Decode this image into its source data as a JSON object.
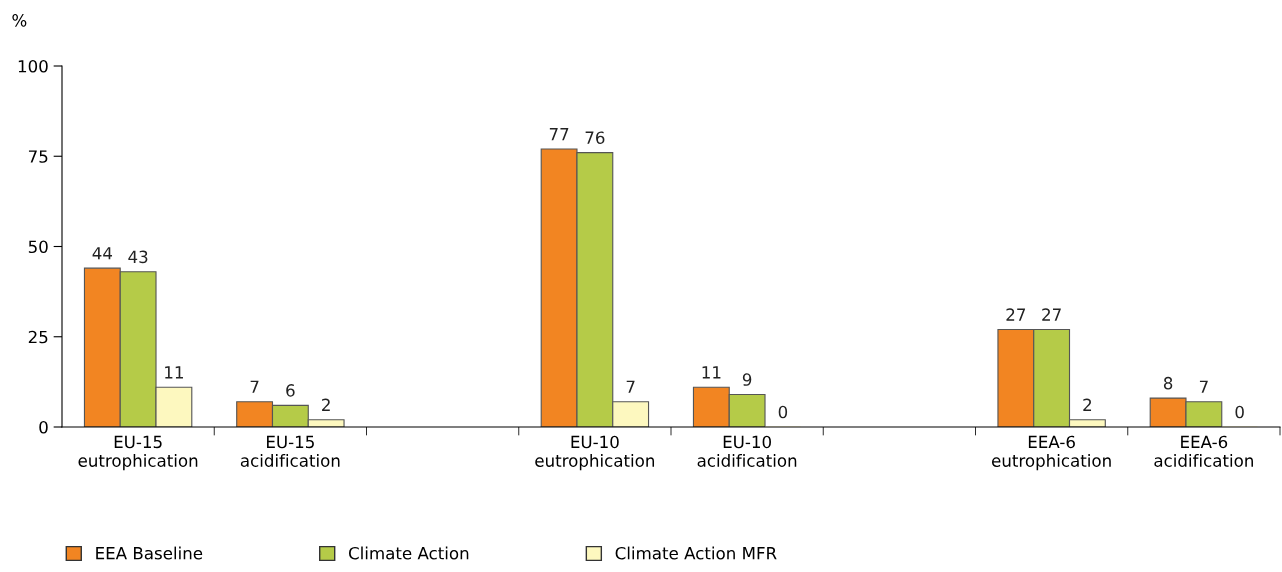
{
  "chart_data": {
    "type": "bar",
    "ylabel": "%",
    "categories": [
      "EU-15\neutrophication",
      "EU-15\nacidification",
      null,
      "EU-10\neutrophication",
      "EU-10\nacidification",
      null,
      "EEA-6\neutrophication",
      "EEA-6\nacidification"
    ],
    "series": [
      {
        "name": "EEA Baseline",
        "color": "#f28522",
        "values": [
          44,
          7,
          null,
          77,
          11,
          null,
          27,
          8
        ]
      },
      {
        "name": "Climate Action",
        "color": "#b5cb48",
        "values": [
          43,
          6,
          null,
          76,
          9,
          null,
          27,
          7
        ]
      },
      {
        "name": "Climate Action MFR",
        "color": "#fdf8bf",
        "values": [
          11,
          2,
          null,
          7,
          0,
          null,
          2,
          0
        ]
      }
    ],
    "ylim": [
      0,
      100
    ],
    "yticks": [
      0,
      25,
      50,
      75,
      100
    ],
    "grid": false,
    "legend": "bottom",
    "data_labels": true
  }
}
